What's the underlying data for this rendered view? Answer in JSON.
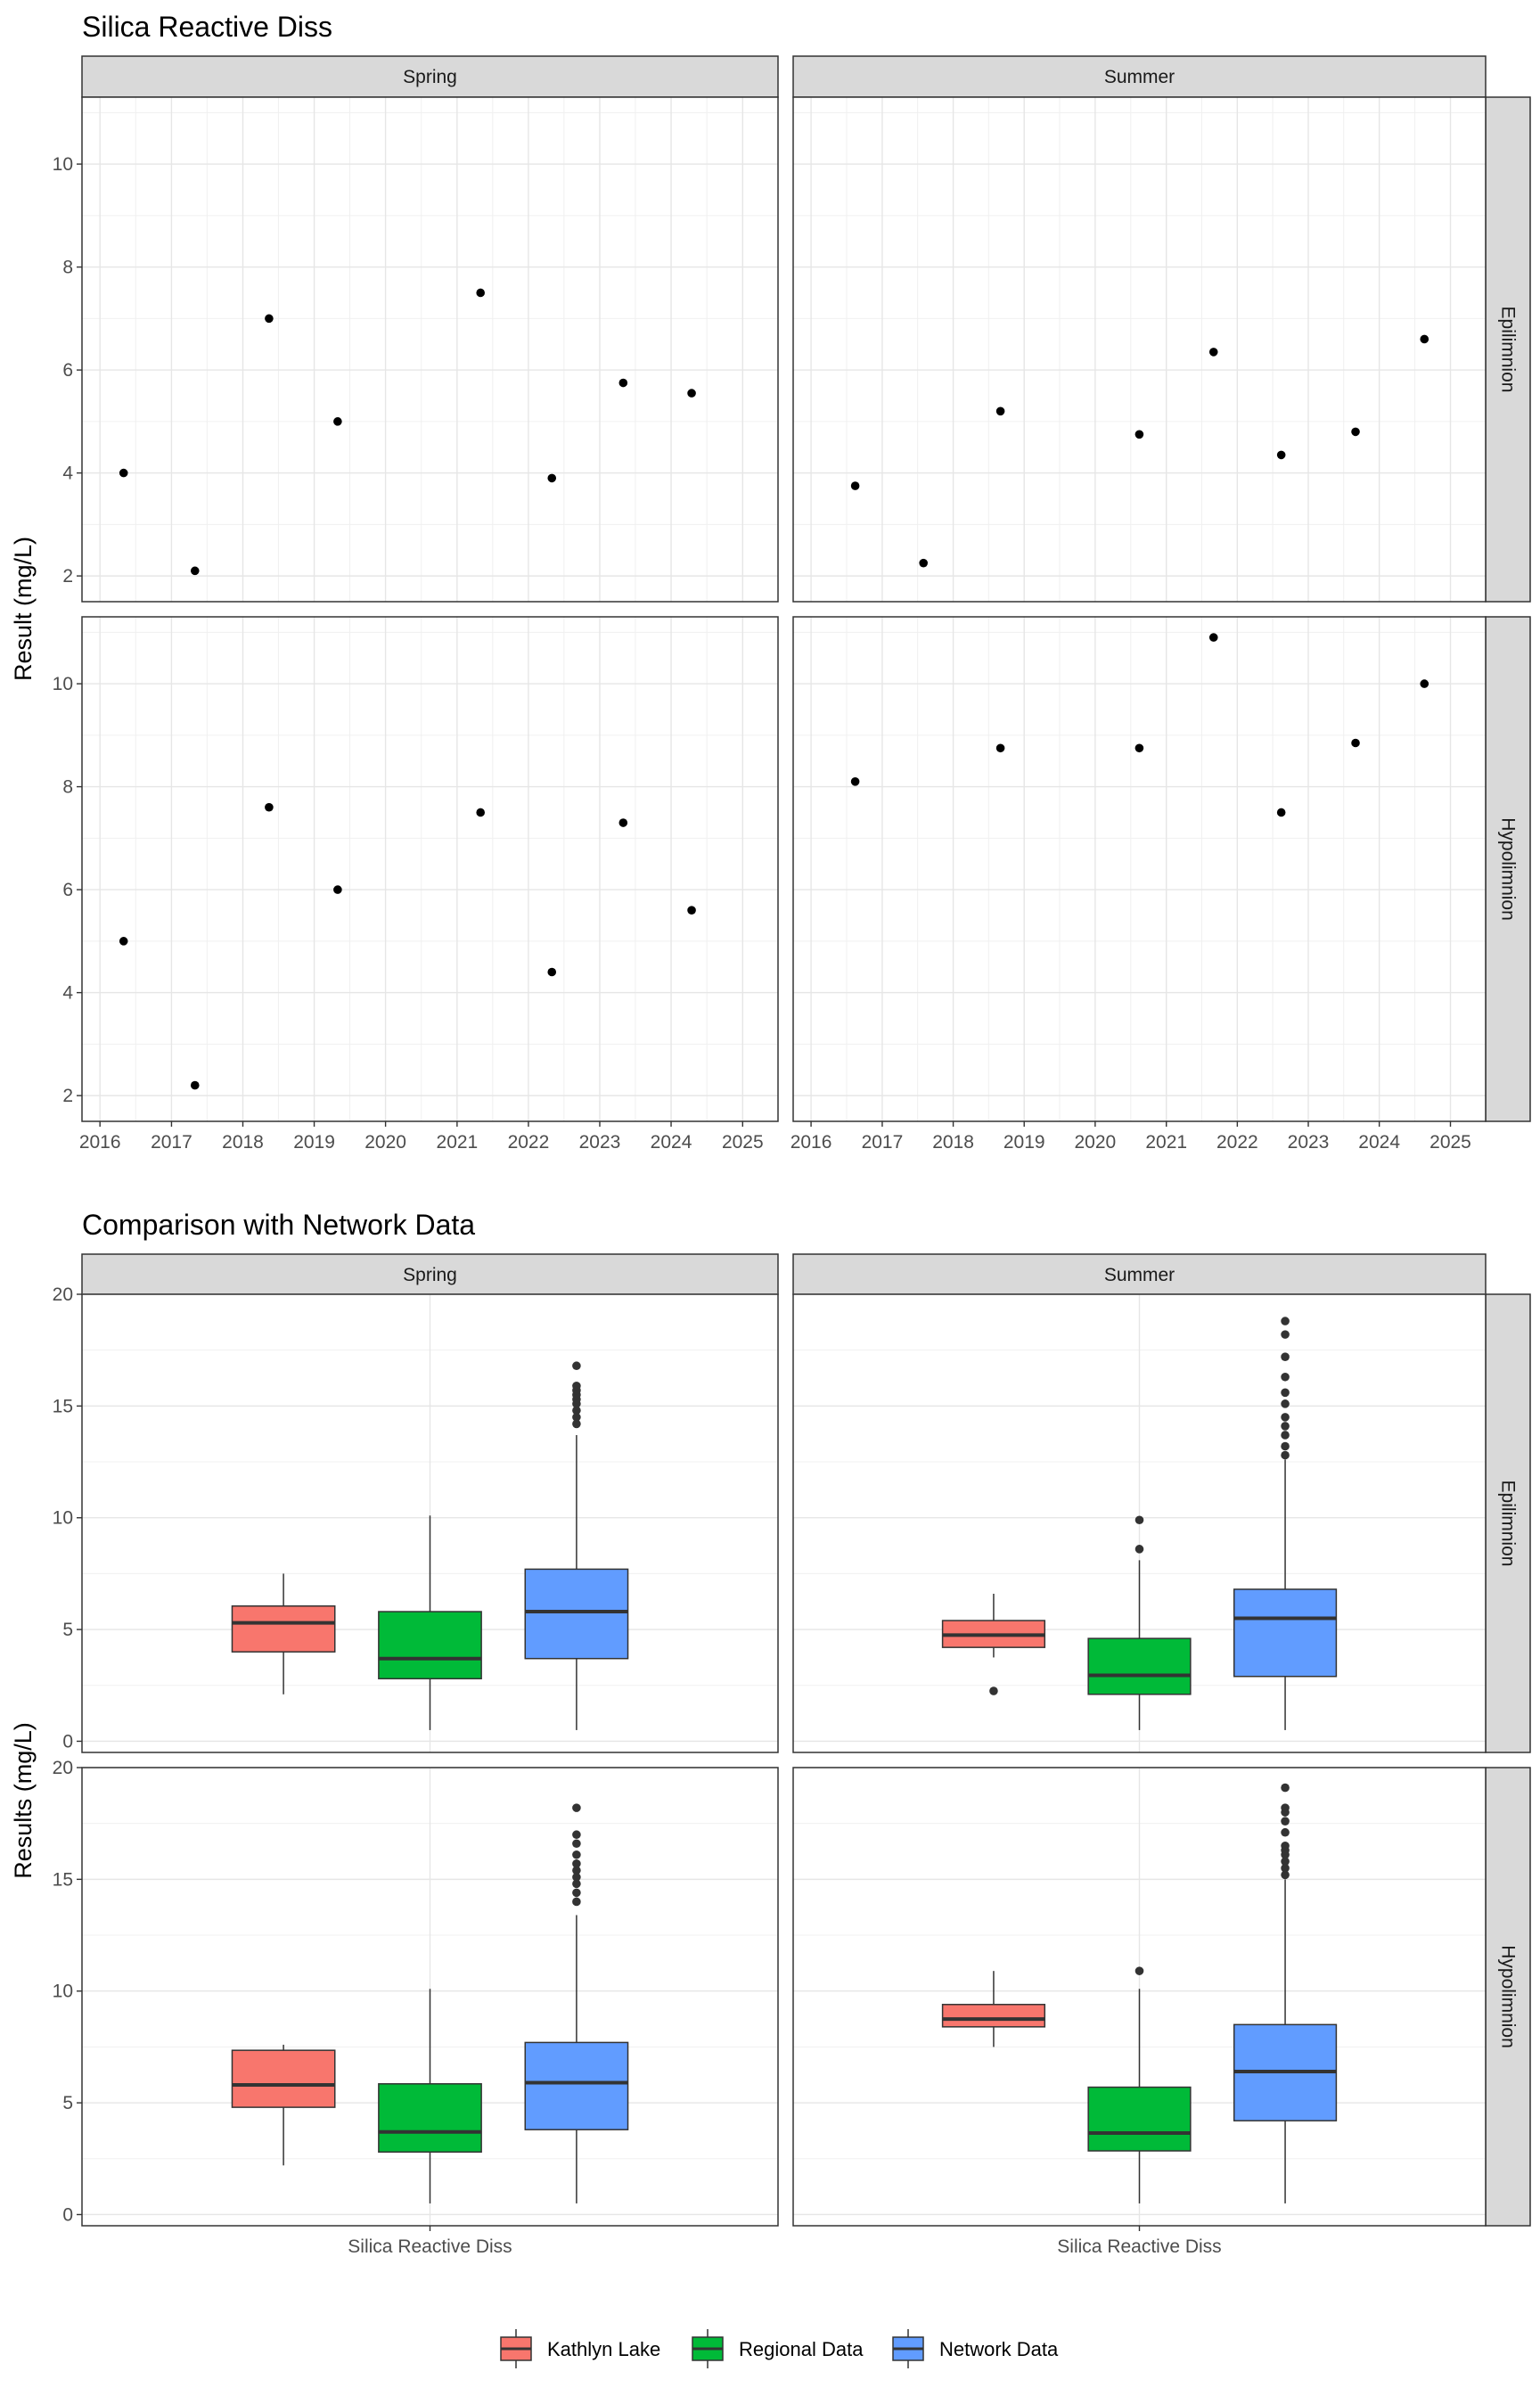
{
  "chart_data": [
    {
      "type": "scatter",
      "title": "Silica Reactive Diss",
      "ylabel": "Result (mg/L)",
      "xlabel": "",
      "facet_cols": [
        "Spring",
        "Summer"
      ],
      "facet_rows": [
        "Epilimnion",
        "Hypolimnion"
      ],
      "xlim": [
        "2015-10-01",
        "2025-07-01"
      ],
      "ylim": [
        1.5,
        11.3
      ],
      "x_ticks": [
        "2016",
        "2017",
        "2018",
        "2019",
        "2020",
        "2021",
        "2022",
        "2023",
        "2024",
        "2025"
      ],
      "y_ticks": [
        2,
        4,
        6,
        8,
        10
      ],
      "grid": true,
      "panels": [
        {
          "col": "Spring",
          "row": "Epilimnion",
          "points": [
            {
              "x": "2016-05-01",
              "y": 4.0
            },
            {
              "x": "2017-05-01",
              "y": 2.1
            },
            {
              "x": "2018-05-15",
              "y": 7.0
            },
            {
              "x": "2019-05-01",
              "y": 5.0
            },
            {
              "x": "2021-05-01",
              "y": 7.5
            },
            {
              "x": "2022-05-01",
              "y": 3.9
            },
            {
              "x": "2023-05-01",
              "y": 5.75
            },
            {
              "x": "2024-04-15",
              "y": 5.55
            }
          ]
        },
        {
          "col": "Summer",
          "row": "Epilimnion",
          "points": [
            {
              "x": "2016-08-15",
              "y": 3.75
            },
            {
              "x": "2017-08-01",
              "y": 2.25
            },
            {
              "x": "2018-09-01",
              "y": 5.2
            },
            {
              "x": "2020-08-15",
              "y": 4.75
            },
            {
              "x": "2021-09-01",
              "y": 6.35
            },
            {
              "x": "2022-08-15",
              "y": 4.35
            },
            {
              "x": "2023-09-01",
              "y": 4.8
            },
            {
              "x": "2024-08-20",
              "y": 6.6
            }
          ]
        },
        {
          "col": "Spring",
          "row": "Hypolimnion",
          "points": [
            {
              "x": "2016-05-01",
              "y": 5.0
            },
            {
              "x": "2017-05-01",
              "y": 2.2
            },
            {
              "x": "2018-05-15",
              "y": 7.6
            },
            {
              "x": "2019-05-01",
              "y": 6.0
            },
            {
              "x": "2021-05-01",
              "y": 7.5
            },
            {
              "x": "2022-05-01",
              "y": 4.4
            },
            {
              "x": "2023-05-01",
              "y": 7.3
            },
            {
              "x": "2024-04-15",
              "y": 5.6
            }
          ]
        },
        {
          "col": "Summer",
          "row": "Hypolimnion",
          "points": [
            {
              "x": "2016-08-15",
              "y": 8.1
            },
            {
              "x": "2018-09-01",
              "y": 8.75
            },
            {
              "x": "2020-08-15",
              "y": 8.75
            },
            {
              "x": "2021-09-01",
              "y": 10.9
            },
            {
              "x": "2022-08-15",
              "y": 7.5
            },
            {
              "x": "2023-09-01",
              "y": 8.85
            },
            {
              "x": "2024-08-20",
              "y": 10.0
            }
          ]
        }
      ]
    },
    {
      "type": "box",
      "title": "Comparison with Network Data",
      "ylabel": "Results (mg/L)",
      "xlabel": "",
      "category": "Silica Reactive Diss",
      "facet_cols": [
        "Spring",
        "Summer"
      ],
      "facet_rows": [
        "Epilimnion",
        "Hypolimnion"
      ],
      "ylim": [
        -0.5,
        20
      ],
      "y_ticks": [
        0,
        5,
        10,
        15,
        20
      ],
      "grid": true,
      "legend_position": "bottom",
      "series": [
        {
          "name": "Kathlyn Lake",
          "color": "#F8766D"
        },
        {
          "name": "Regional Data",
          "color": "#00BA38"
        },
        {
          "name": "Network Data",
          "color": "#619CFF"
        }
      ],
      "panels": [
        {
          "col": "Spring",
          "row": "Epilimnion",
          "boxes": [
            {
              "series": "Kathlyn Lake",
              "whisker_low": 2.1,
              "q1": 4.0,
              "median": 5.3,
              "q3": 6.05,
              "whisker_high": 7.5,
              "outliers": []
            },
            {
              "series": "Regional Data",
              "whisker_low": 0.5,
              "q1": 2.8,
              "median": 3.7,
              "q3": 5.8,
              "whisker_high": 10.1,
              "outliers": []
            },
            {
              "series": "Network Data",
              "whisker_low": 0.5,
              "q1": 3.7,
              "median": 5.8,
              "q3": 7.7,
              "whisker_high": 13.7,
              "outliers": [
                14.2,
                14.5,
                14.8,
                15.1,
                15.3,
                15.5,
                15.7,
                15.9,
                16.8
              ]
            }
          ]
        },
        {
          "col": "Summer",
          "row": "Epilimnion",
          "boxes": [
            {
              "series": "Kathlyn Lake",
              "whisker_low": 3.75,
              "q1": 4.2,
              "median": 4.75,
              "q3": 5.4,
              "whisker_high": 6.6,
              "outliers": [
                2.25
              ]
            },
            {
              "series": "Regional Data",
              "whisker_low": 0.5,
              "q1": 2.1,
              "median": 2.95,
              "q3": 4.6,
              "whisker_high": 8.1,
              "outliers": [
                8.6,
                9.9
              ]
            },
            {
              "series": "Network Data",
              "whisker_low": 0.5,
              "q1": 2.9,
              "median": 5.5,
              "q3": 6.8,
              "whisker_high": 12.6,
              "outliers": [
                12.8,
                13.2,
                13.7,
                14.1,
                14.5,
                15.1,
                15.6,
                16.3,
                17.2,
                18.2,
                18.8
              ]
            }
          ]
        },
        {
          "col": "Spring",
          "row": "Hypolimnion",
          "boxes": [
            {
              "series": "Kathlyn Lake",
              "whisker_low": 2.2,
              "q1": 4.8,
              "median": 5.8,
              "q3": 7.35,
              "whisker_high": 7.6,
              "outliers": []
            },
            {
              "series": "Regional Data",
              "whisker_low": 0.5,
              "q1": 2.8,
              "median": 3.7,
              "q3": 5.85,
              "whisker_high": 10.1,
              "outliers": []
            },
            {
              "series": "Network Data",
              "whisker_low": 0.5,
              "q1": 3.8,
              "median": 5.9,
              "q3": 7.7,
              "whisker_high": 13.4,
              "outliers": [
                14.0,
                14.4,
                14.8,
                15.1,
                15.4,
                15.7,
                16.1,
                16.6,
                17.0,
                18.2
              ]
            }
          ]
        },
        {
          "col": "Summer",
          "row": "Hypolimnion",
          "boxes": [
            {
              "series": "Kathlyn Lake",
              "whisker_low": 7.5,
              "q1": 8.4,
              "median": 8.75,
              "q3": 9.4,
              "whisker_high": 10.9,
              "outliers": []
            },
            {
              "series": "Regional Data",
              "whisker_low": 0.5,
              "q1": 2.85,
              "median": 3.65,
              "q3": 5.7,
              "whisker_high": 10.1,
              "outliers": [
                10.9
              ]
            },
            {
              "series": "Network Data",
              "whisker_low": 0.5,
              "q1": 4.2,
              "median": 6.4,
              "q3": 8.5,
              "whisker_high": 15.0,
              "outliers": [
                15.2,
                15.5,
                15.8,
                16.1,
                16.3,
                16.5,
                17.1,
                17.6,
                18.0,
                18.2,
                19.1
              ]
            }
          ]
        }
      ]
    }
  ]
}
